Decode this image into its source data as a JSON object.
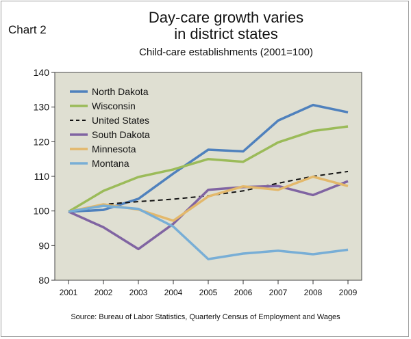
{
  "chart_label": "Chart 2",
  "chart_data": {
    "type": "line",
    "title": "Day-care growth varies in district states",
    "title_lines": [
      "Day-care growth varies",
      "in district states"
    ],
    "subtitle": "Child-care establishments (2001=100)",
    "source": "Source: Bureau of Labor Statistics, Quarterly Census of Employment and Wages",
    "xlabel": "",
    "ylabel": "",
    "ylim": [
      80,
      140
    ],
    "yticks": [
      80,
      90,
      100,
      110,
      120,
      130,
      140
    ],
    "xlim": [
      2001,
      2009
    ],
    "xticks": [
      "2001",
      "2002",
      "2003",
      "2004",
      "2005",
      "2006",
      "2007",
      "2008",
      "2009"
    ],
    "grid": false,
    "legend_position": "top-left",
    "background_color": "#dfdfd2",
    "series": [
      {
        "name": "North Dakota",
        "color": "#4f81bd",
        "dashed": false,
        "x": [
          2001,
          2002,
          2003,
          2004,
          2005,
          2006,
          2007,
          2008,
          2009
        ],
        "values": [
          99.8,
          100.3,
          103.5,
          110.8,
          117.7,
          117.2,
          126.1,
          130.6,
          128.5
        ]
      },
      {
        "name": "Wisconsin",
        "color": "#9bbb59",
        "dashed": false,
        "x": [
          2001,
          2002,
          2003,
          2004,
          2005,
          2006,
          2007,
          2008,
          2009
        ],
        "values": [
          99.8,
          105.8,
          109.8,
          112.0,
          115.0,
          114.2,
          119.8,
          123.1,
          124.4
        ]
      },
      {
        "name": "United States",
        "color": "#111111",
        "dashed": true,
        "x": [
          2001,
          2002,
          2003,
          2004,
          2005,
          2006,
          2007,
          2008,
          2009
        ],
        "values": [
          99.8,
          101.9,
          102.7,
          103.4,
          104.4,
          105.8,
          108.0,
          110.0,
          111.4
        ]
      },
      {
        "name": "South Dakota",
        "color": "#8064a2",
        "dashed": false,
        "x": [
          2001,
          2002,
          2003,
          2004,
          2005,
          2006,
          2007,
          2008,
          2009
        ],
        "values": [
          99.8,
          95.3,
          89.0,
          96.3,
          106.1,
          106.9,
          107.2,
          104.6,
          108.6
        ]
      },
      {
        "name": "Minnesota",
        "color": "#e3b86b",
        "dashed": false,
        "x": [
          2001,
          2002,
          2003,
          2004,
          2005,
          2006,
          2007,
          2008,
          2009
        ],
        "values": [
          99.8,
          101.9,
          100.4,
          97.2,
          104.2,
          107.1,
          106.1,
          109.9,
          107.2
        ]
      },
      {
        "name": "Montana",
        "color": "#78aed6",
        "dashed": false,
        "x": [
          2001,
          2002,
          2003,
          2004,
          2005,
          2006,
          2007,
          2008,
          2009
        ],
        "values": [
          99.8,
          101.5,
          100.6,
          95.5,
          86.1,
          87.7,
          88.5,
          87.5,
          88.8
        ]
      }
    ]
  }
}
